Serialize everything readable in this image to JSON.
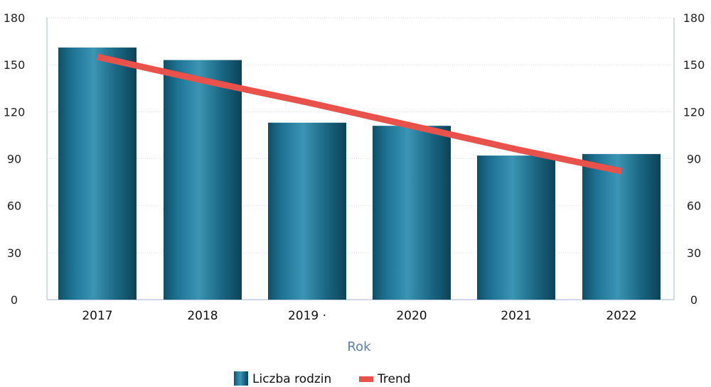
{
  "chart_data": {
    "type": "bar",
    "categories": [
      "2017",
      "2018",
      "2019 ·",
      "2020",
      "2021",
      "2022"
    ],
    "series": [
      {
        "name": "Liczba rodzin",
        "type": "bar",
        "values": [
          161,
          153,
          113,
          111,
          92,
          93
        ],
        "color": "#1b6a86"
      },
      {
        "name": "Trend",
        "type": "line",
        "values": [
          155,
          140,
          126,
          111,
          96,
          82
        ],
        "color": "#e8524a"
      }
    ],
    "title": "",
    "xlabel": "Rok",
    "ylabel": "",
    "ylim": [
      0,
      180
    ],
    "y_ticks": [
      "0",
      "30",
      "60",
      "90",
      "120",
      "150",
      "180"
    ],
    "y_ticks_right": [
      "0",
      "30",
      "60",
      "90",
      "120",
      "150",
      "180"
    ],
    "grid": true,
    "legend_position": "bottom-center"
  }
}
